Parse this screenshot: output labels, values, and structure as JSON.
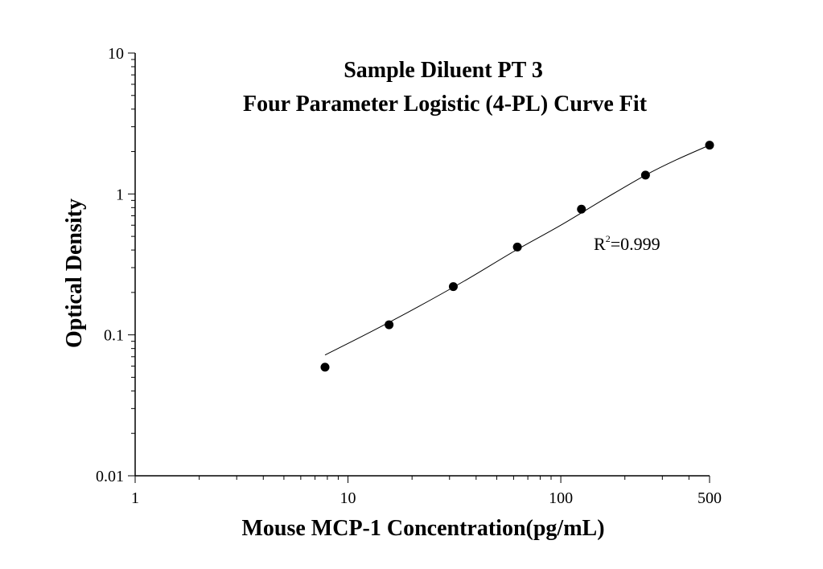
{
  "chart_data": {
    "type": "scatter",
    "title": "Sample Diluent PT 3",
    "subtitle": "Four Parameter Logistic (4-PL) Curve Fit",
    "xlabel": "Mouse MCP-1 Concentration(pg/mL)",
    "ylabel": "Optical Density",
    "x_scale": "log",
    "y_scale": "log",
    "xlim": [
      1,
      500
    ],
    "ylim": [
      0.01,
      10
    ],
    "x_ticks": [
      "1",
      "10",
      "100",
      "500"
    ],
    "y_ticks": [
      "0.01",
      "0.1",
      "1",
      "10"
    ],
    "grid": false,
    "annotation": {
      "base": "R",
      "sup": "2",
      "rest": "=0.999"
    },
    "series": [
      {
        "x": [
          7.8,
          15.6,
          31.25,
          62.5,
          125,
          250,
          500
        ],
        "y": [
          0.059,
          0.118,
          0.22,
          0.42,
          0.78,
          1.36,
          2.22
        ]
      }
    ],
    "fit_curve": {
      "x": [
        7.8,
        12,
        20,
        35,
        60,
        100,
        160,
        250,
        350,
        500
      ],
      "y": [
        0.072,
        0.1,
        0.15,
        0.24,
        0.39,
        0.6,
        0.92,
        1.36,
        1.75,
        2.22
      ]
    },
    "colors": {
      "marker": "#000000",
      "line": "#000000"
    }
  }
}
